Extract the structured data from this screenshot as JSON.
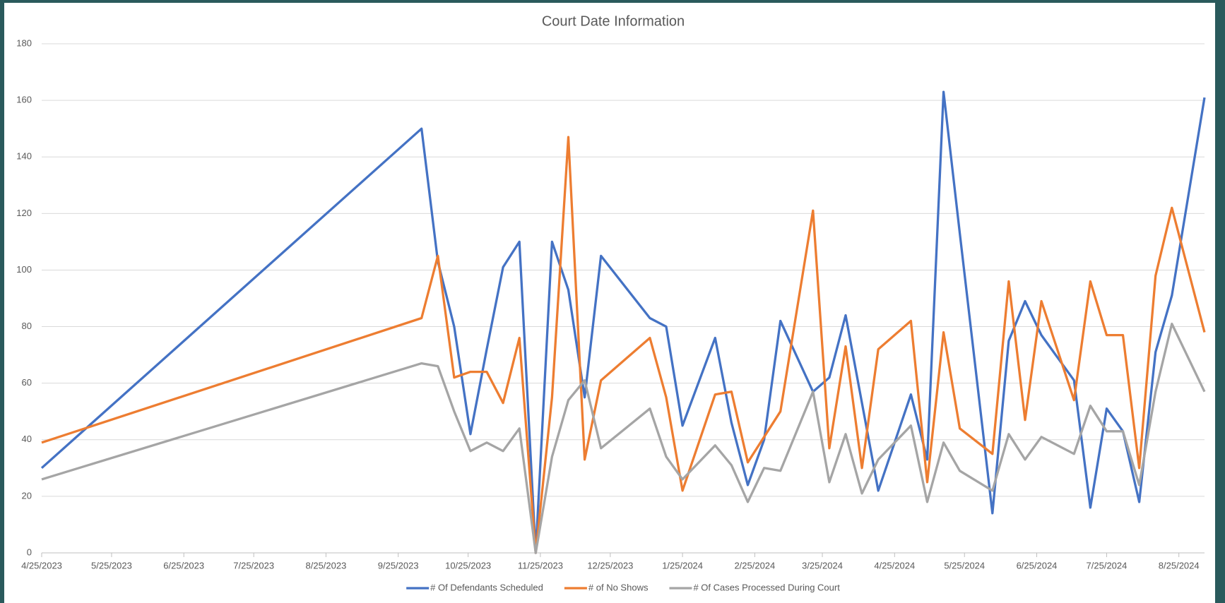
{
  "chart_data": {
    "type": "line",
    "title": "Court Date Information",
    "x": [
      "4/25/2023",
      "10/5/2023",
      "10/12/2023",
      "10/19/2023",
      "10/26/2023",
      "11/2/2023",
      "11/9/2023",
      "11/16/2023",
      "11/23/2023",
      "11/30/2023",
      "12/7/2023",
      "12/14/2023",
      "12/21/2023",
      "1/11/2024",
      "1/18/2024",
      "1/25/2024",
      "2/8/2024",
      "2/15/2024",
      "2/22/2024",
      "2/29/2024",
      "3/7/2024",
      "3/21/2024",
      "3/28/2024",
      "4/4/2024",
      "4/11/2024",
      "4/18/2024",
      "5/2/2024",
      "5/9/2024",
      "5/16/2024",
      "5/23/2024",
      "6/6/2024",
      "6/13/2024",
      "6/20/2024",
      "6/27/2024",
      "7/11/2024",
      "7/18/2024",
      "7/25/2024",
      "8/1/2024",
      "8/8/2024",
      "8/15/2024",
      "8/22/2024",
      "9/5/2024"
    ],
    "series": [
      {
        "name": "# Of Defendants Scheduled",
        "color": "#4472c4",
        "values": [
          30,
          150,
          103,
          80,
          42,
          72,
          101,
          110,
          0,
          110,
          93,
          55,
          105,
          83,
          80,
          45,
          76,
          46,
          24,
          40,
          82,
          57,
          62,
          84,
          53,
          22,
          56,
          33,
          163,
          113,
          14,
          75,
          89,
          77,
          61,
          16,
          51,
          43,
          18,
          71,
          91,
          161
        ]
      },
      {
        "name": "# of No Shows",
        "color": "#ed7d31",
        "values": [
          39,
          83,
          105,
          62,
          64,
          64,
          53,
          76,
          0,
          55,
          147,
          33,
          61,
          76,
          55,
          22,
          56,
          57,
          32,
          41,
          50,
          121,
          37,
          73,
          30,
          72,
          82,
          25,
          78,
          44,
          35,
          96,
          47,
          89,
          54,
          96,
          77,
          77,
          30,
          98,
          122,
          78
        ]
      },
      {
        "name": "# Of Cases Processed During Court",
        "color": "#a5a5a5",
        "values": [
          26,
          67,
          66,
          50,
          36,
          39,
          36,
          44,
          0,
          34,
          54,
          61,
          37,
          51,
          34,
          26,
          38,
          31,
          18,
          30,
          29,
          57,
          25,
          42,
          21,
          33,
          45,
          18,
          39,
          29,
          22,
          42,
          33,
          41,
          35,
          52,
          43,
          43,
          24,
          57,
          81,
          57
        ]
      }
    ],
    "xlim": [
      "4/25/2023",
      "9/5/2024"
    ],
    "xticks": [
      "4/25/2023",
      "5/25/2023",
      "6/25/2023",
      "7/25/2023",
      "8/25/2023",
      "9/25/2023",
      "10/25/2023",
      "11/25/2023",
      "12/25/2023",
      "1/25/2024",
      "2/25/2024",
      "3/25/2024",
      "4/25/2024",
      "5/25/2024",
      "6/25/2024",
      "7/25/2024",
      "8/25/2024"
    ],
    "ylim": [
      0,
      180
    ],
    "yticks": [
      0,
      20,
      40,
      60,
      80,
      100,
      120,
      140,
      160,
      180
    ],
    "grid": true,
    "legend": "bottom"
  }
}
